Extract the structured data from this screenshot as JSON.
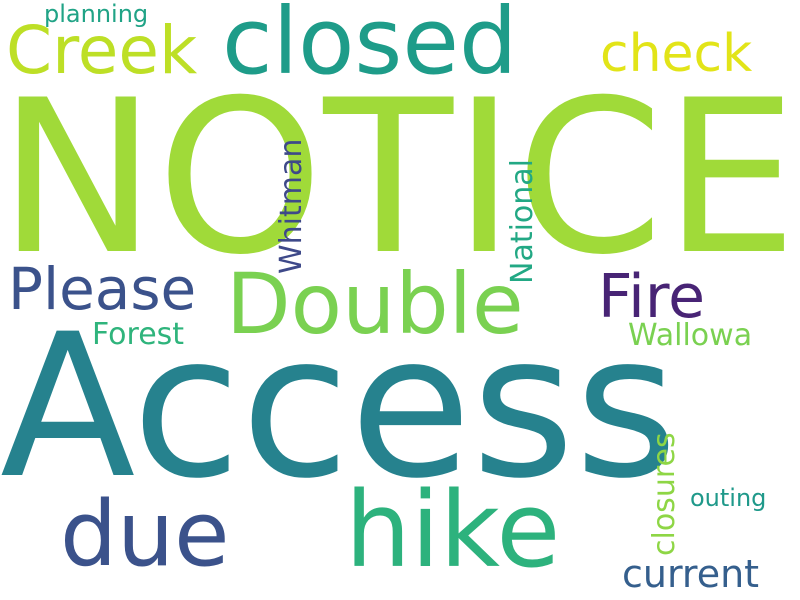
{
  "words": [
    {
      "text": "NOTICE",
      "color": "#a0da39"
    },
    {
      "text": "Access",
      "color": "#26828e"
    },
    {
      "text": "closed",
      "color": "#1e9c89"
    },
    {
      "text": "Creek",
      "color": "#bddf26"
    },
    {
      "text": "check",
      "color": "#e2e418"
    },
    {
      "text": "planning",
      "color": "#20a386"
    },
    {
      "text": "Double",
      "color": "#7ad151"
    },
    {
      "text": "Fire",
      "color": "#482475"
    },
    {
      "text": "Please",
      "color": "#3b528b"
    },
    {
      "text": "Whitman",
      "color": "#3e4989"
    },
    {
      "text": "National",
      "color": "#22a884"
    },
    {
      "text": "Forest",
      "color": "#2fb47c"
    },
    {
      "text": "Wallowa",
      "color": "#7ad151"
    },
    {
      "text": "closures",
      "color": "#8ed645"
    },
    {
      "text": "hike",
      "color": "#2db27d"
    },
    {
      "text": "due",
      "color": "#3b528b"
    },
    {
      "text": "outing",
      "color": "#1f998a"
    },
    {
      "text": "current",
      "color": "#355f8d"
    }
  ]
}
